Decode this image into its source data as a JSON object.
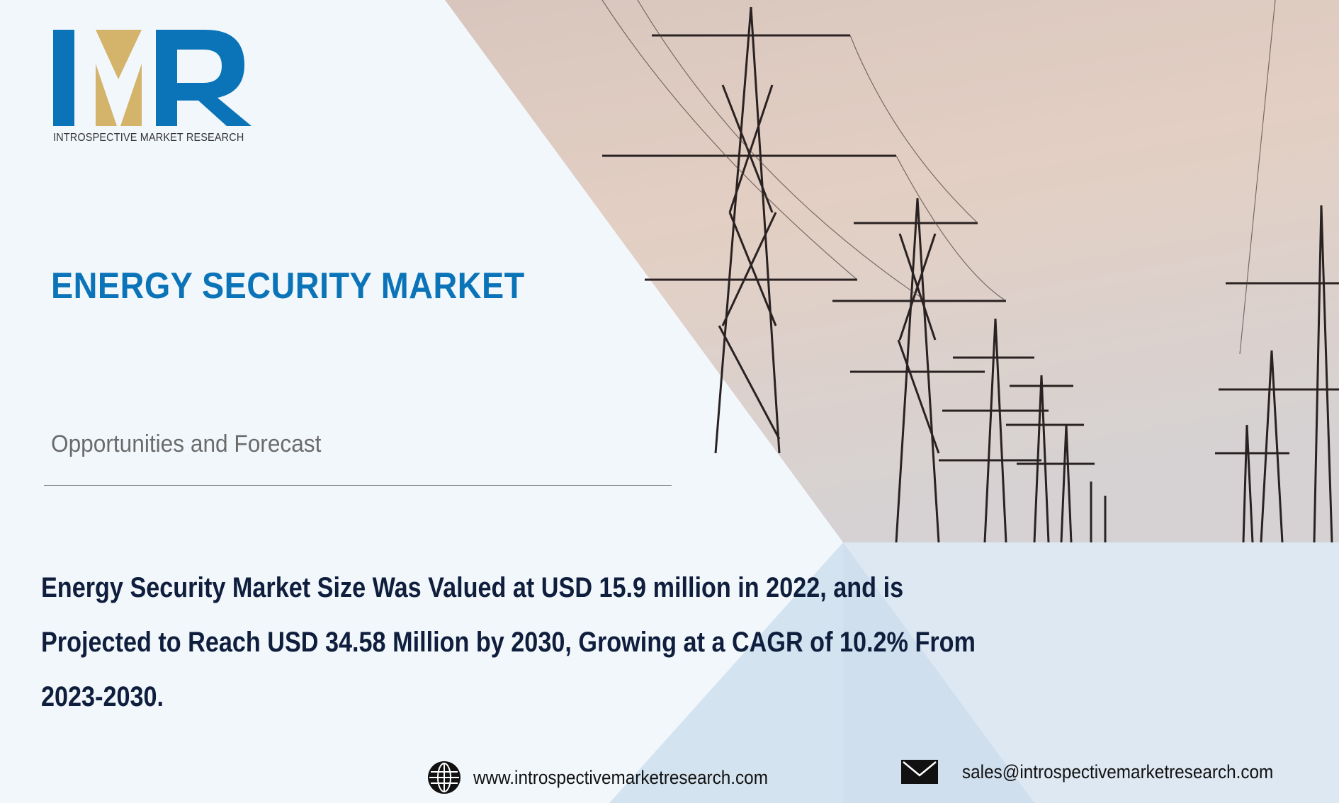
{
  "brand": {
    "logo_letters": "IMR",
    "logo_tagline": "INTROSPECTIVE MARKET RESEARCH",
    "colors": {
      "blue": "#0b74b8",
      "gold": "#d4b36a"
    }
  },
  "hero": {
    "title": "ENERGY SECURITY MARKET",
    "subtitle": "Opportunities and Forecast",
    "summary_lines": [
      "Energy Security Market Size Was Valued at USD 15.9 million in 2022, and is",
      "Projected to Reach USD 34.58 Million by 2030, Growing at a CAGR of 10.2% From",
      "2023-2030."
    ]
  },
  "footer": {
    "website_icon": "globe-icon",
    "website": "www.introspectivemarketresearch.com",
    "email_icon": "envelope-icon",
    "email": "sales@introspectivemarketresearch.com"
  }
}
